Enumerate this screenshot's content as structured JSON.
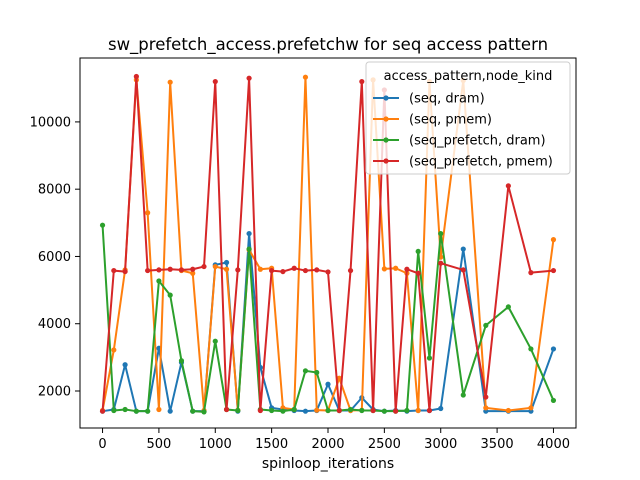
{
  "chart_data": {
    "type": "line",
    "title": "sw_prefetch_access.prefetchw for seq access pattern",
    "xlabel": "spinloop_iterations",
    "ylabel": "",
    "xlim": [
      -200,
      4200
    ],
    "ylim": [
      900,
      11900
    ],
    "xticks": [
      0,
      500,
      1000,
      1500,
      2000,
      2500,
      3000,
      3500,
      4000
    ],
    "yticks": [
      2000,
      4000,
      6000,
      8000,
      10000
    ],
    "grid": false,
    "legend": {
      "title": "access_pattern,node_kind",
      "placement": "top-right"
    },
    "series": [
      {
        "name": "(seq, dram)",
        "color": "#1f77b4",
        "x": [
          0,
          100,
          200,
          300,
          400,
          500,
          600,
          700,
          800,
          900,
          1000,
          1100,
          1200,
          1300,
          1400,
          1500,
          1600,
          1700,
          1800,
          1900,
          2000,
          2100,
          2200,
          2300,
          2400,
          2500,
          2600,
          2700,
          2800,
          2900,
          3000,
          3200,
          3400,
          3600,
          3800,
          4000
        ],
        "y": [
          1400,
          1450,
          2780,
          1400,
          1400,
          3270,
          1400,
          2850,
          1400,
          1400,
          5750,
          5820,
          1400,
          6680,
          2700,
          1500,
          1450,
          1420,
          1400,
          1420,
          2200,
          1420,
          1420,
          1800,
          1450,
          1400,
          1420,
          1400,
          1420,
          1420,
          1480,
          6220,
          1400,
          1400,
          1400,
          3250
        ]
      },
      {
        "name": "(seq, pmem)",
        "color": "#ff7f0e",
        "x": [
          0,
          100,
          200,
          300,
          400,
          500,
          600,
          700,
          800,
          900,
          1000,
          1100,
          1200,
          1300,
          1400,
          1500,
          1600,
          1700,
          1800,
          1900,
          2000,
          2100,
          2200,
          2300,
          2400,
          2500,
          2600,
          2700,
          2800,
          2900,
          3000,
          3200,
          3400,
          3600,
          3800,
          4000
        ],
        "y": [
          1420,
          3220,
          5600,
          11250,
          7300,
          1450,
          11180,
          5580,
          5500,
          1420,
          5700,
          5620,
          1430,
          6200,
          5620,
          5650,
          1500,
          1450,
          11330,
          1430,
          1420,
          2380,
          1420,
          1430,
          11250,
          5630,
          5650,
          5500,
          1420,
          11200,
          5980,
          11230,
          1500,
          1420,
          1500,
          6500
        ]
      },
      {
        "name": "(seq_prefetch, dram)",
        "color": "#2ca02c",
        "x": [
          0,
          100,
          200,
          300,
          400,
          500,
          600,
          700,
          800,
          900,
          1000,
          1100,
          1200,
          1300,
          1400,
          1500,
          1600,
          1700,
          1800,
          1900,
          2000,
          2100,
          2200,
          2300,
          2400,
          2500,
          2600,
          2700,
          2800,
          2900,
          3000,
          3200,
          3400,
          3600,
          3800,
          4000
        ],
        "y": [
          6930,
          1420,
          1450,
          1400,
          1400,
          5270,
          4850,
          2900,
          1400,
          1380,
          3480,
          1450,
          1420,
          6220,
          1450,
          1420,
          1400,
          1450,
          2600,
          2550,
          1420,
          1420,
          1450,
          1420,
          1420,
          1400,
          1400,
          1420,
          6150,
          2980,
          6680,
          1880,
          3950,
          4500,
          3250,
          1720
        ]
      },
      {
        "name": "(seq_prefetch, pmem)",
        "color": "#d62728",
        "x": [
          0,
          100,
          200,
          300,
          400,
          500,
          600,
          700,
          800,
          900,
          1000,
          1100,
          1200,
          1300,
          1400,
          1500,
          1600,
          1700,
          1800,
          1900,
          2000,
          2100,
          2200,
          2300,
          2400,
          2500,
          2600,
          2700,
          2800,
          2900,
          3000,
          3200,
          3400,
          3600,
          3800,
          4000
        ],
        "y": [
          1400,
          5580,
          5550,
          11350,
          5580,
          5600,
          5620,
          5600,
          5620,
          5700,
          11200,
          1450,
          5600,
          11300,
          1420,
          5580,
          5550,
          5650,
          5580,
          5600,
          5540,
          1420,
          5580,
          11200,
          1420,
          10950,
          1400,
          5620,
          5500,
          1420,
          5800,
          5600,
          1820,
          8100,
          5520,
          5580
        ]
      }
    ]
  }
}
